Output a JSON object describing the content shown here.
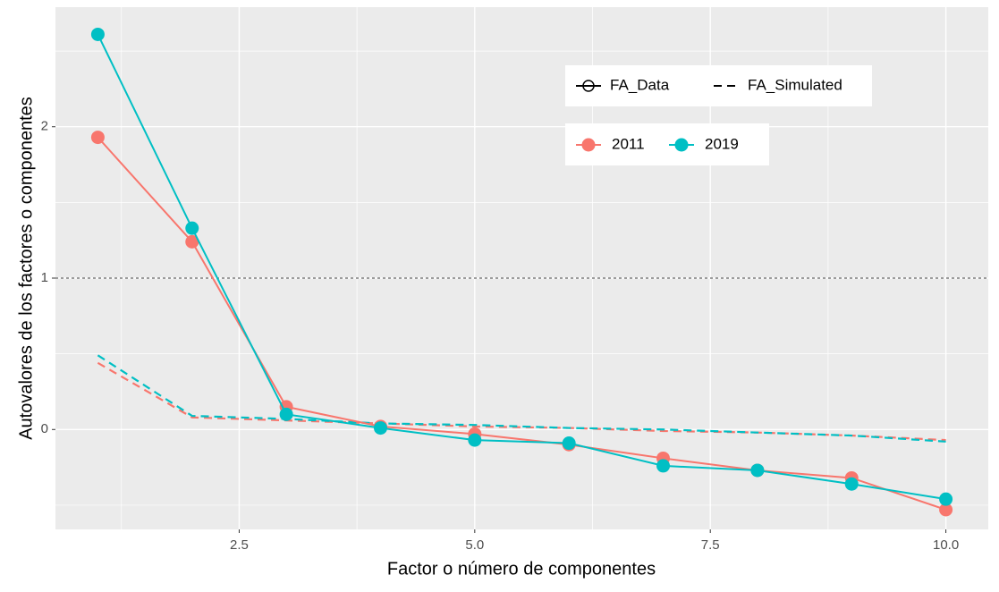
{
  "chart_data": {
    "type": "line",
    "x_label": "Factor o número de componentes",
    "y_label": "Autovalores de los factores o componentes",
    "x": [
      1,
      2,
      3,
      4,
      5,
      6,
      7,
      8,
      9,
      10
    ],
    "series": [
      {
        "name": "2011",
        "color": "#F8766D",
        "values": [
          1.93,
          1.24,
          0.15,
          0.02,
          -0.03,
          -0.1,
          -0.19,
          -0.27,
          -0.32,
          -0.53
        ],
        "simulated": [
          0.44,
          0.08,
          0.06,
          0.04,
          0.02,
          0.01,
          -0.01,
          -0.02,
          -0.04,
          -0.07
        ]
      },
      {
        "name": "2019",
        "color": "#00BFC4",
        "values": [
          2.61,
          1.33,
          0.1,
          0.01,
          -0.07,
          -0.09,
          -0.24,
          -0.27,
          -0.36,
          -0.46
        ],
        "simulated": [
          0.49,
          0.09,
          0.07,
          0.04,
          0.03,
          0.01,
          0.0,
          -0.02,
          -0.04,
          -0.08
        ]
      }
    ],
    "linetype_legend": [
      "FA_Data",
      "FA_Simulated"
    ],
    "xlim": [
      0.55,
      10.45
    ],
    "ylim": [
      -0.66,
      2.79
    ],
    "xticks": [
      2.5,
      {
        "value": 5,
        "label": "5.0"
      },
      7.5,
      {
        "value": 10,
        "label": "10.0"
      }
    ],
    "yticks": [
      0,
      1,
      2
    ],
    "x_minor_grid": [
      1.25,
      3.75,
      6.25,
      8.75
    ],
    "y_minor_grid": [
      -0.5,
      0.5,
      1.5,
      2.5
    ],
    "hline": 1,
    "grid": true,
    "legend": "top-right"
  }
}
